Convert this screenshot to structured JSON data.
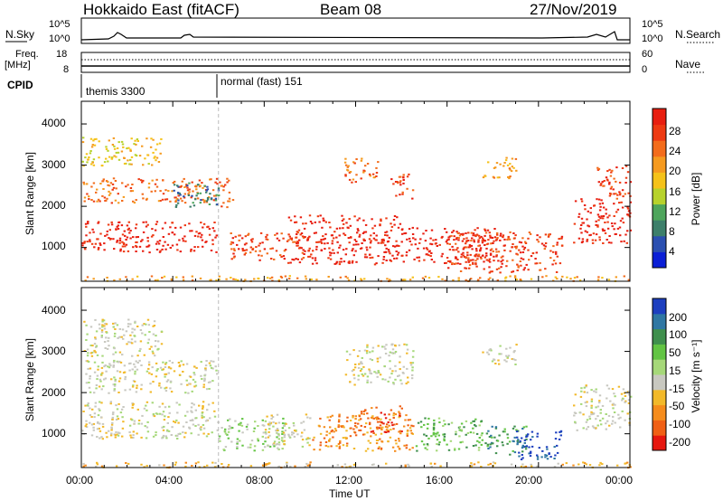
{
  "header": {
    "station": "Hokkaido East (fitACF)",
    "beam": "Beam 08",
    "date": "27/Nov/2019"
  },
  "strips": {
    "nsky_label": "N.Sky",
    "nsearch_label": "N.Search",
    "freq_label": "Freq.",
    "freq_unit": "[MHz]",
    "nave_label": "Nave",
    "cpid_label": "CPID",
    "noise_ticks": [
      "10^5",
      "10^0"
    ],
    "freq_ticks": [
      "18",
      "8"
    ],
    "nave_ticks": [
      "60",
      "0"
    ],
    "cpid_modes": [
      {
        "name": "themis 3300",
        "start_hour": 0
      },
      {
        "name": "normal (fast) 151",
        "start_hour": 6
      }
    ]
  },
  "panels": {
    "yaxis_label": "Slant Range [km]",
    "yticks": [
      "1000",
      "2000",
      "3000",
      "4000"
    ],
    "xticks": [
      "00:00",
      "04:00",
      "08:00",
      "12:00",
      "16:00",
      "20:00",
      "00:00"
    ],
    "xlabel": "Time UT",
    "power_label": "Power [dB]",
    "velocity_label": "Velocity [m s⁻¹]"
  },
  "chart_data": [
    {
      "type": "heatmap",
      "name": "power",
      "x_range_hours": [
        0,
        24
      ],
      "y_range_km": [
        180,
        4550
      ],
      "colorbar_ticks": [
        4,
        8,
        12,
        16,
        20,
        24,
        28
      ],
      "colors": [
        "#0b1fd6",
        "#2b4fb0",
        "#3d7f6a",
        "#4ea55c",
        "#b7d22c",
        "#f5c219",
        "#f59a1f",
        "#f36c1b",
        "#ee3a12",
        "#e81e10"
      ],
      "blobs": [
        {
          "t0": 0.0,
          "t1": 6.0,
          "r0": 900,
          "r1": 1650,
          "c": 9
        },
        {
          "t0": 0.0,
          "t1": 6.0,
          "r0": 2100,
          "r1": 2700,
          "c": 7
        },
        {
          "t0": 0.0,
          "t1": 3.5,
          "r0": 3000,
          "r1": 3700,
          "c": 5
        },
        {
          "t0": 4.0,
          "t1": 6.0,
          "r0": 2000,
          "r1": 2600,
          "c": 2
        },
        {
          "t0": 6.0,
          "t1": 6.6,
          "r0": 2000,
          "r1": 2700,
          "c": 7
        },
        {
          "t0": 6.5,
          "t1": 10.0,
          "r0": 700,
          "r1": 1400,
          "c": 8
        },
        {
          "t0": 9.0,
          "t1": 14.0,
          "r0": 600,
          "r1": 1800,
          "c": 9
        },
        {
          "t0": 14.0,
          "t1": 18.5,
          "r0": 600,
          "r1": 1500,
          "c": 9
        },
        {
          "t0": 16.0,
          "t1": 21.0,
          "r0": 400,
          "r1": 1400,
          "c": 8
        },
        {
          "t0": 11.5,
          "t1": 13.0,
          "r0": 2600,
          "r1": 3200,
          "c": 7
        },
        {
          "t0": 13.5,
          "t1": 14.5,
          "r0": 2200,
          "r1": 2800,
          "c": 8
        },
        {
          "t0": 17.5,
          "t1": 19.0,
          "r0": 2700,
          "r1": 3200,
          "c": 6
        },
        {
          "t0": 21.5,
          "t1": 24.0,
          "r0": 1100,
          "r1": 2200,
          "c": 9
        },
        {
          "t0": 22.5,
          "t1": 24.0,
          "r0": 2200,
          "r1": 3000,
          "c": 8
        },
        {
          "t0": 0.0,
          "t1": 24.0,
          "r0": 200,
          "r1": 330,
          "c": 6
        }
      ]
    },
    {
      "type": "heatmap",
      "name": "velocity",
      "x_range_hours": [
        0,
        24
      ],
      "y_range_km": [
        180,
        4550
      ],
      "colorbar_ticks": [
        200,
        100,
        50,
        15,
        -15,
        -50,
        -100,
        -200
      ],
      "colors": [
        "#1d3fbf",
        "#2f77a3",
        "#3f8f4d",
        "#62c443",
        "#a6d879",
        "#c8c8c0",
        "#f2b92a",
        "#f58c1c",
        "#f06015",
        "#e6170f"
      ],
      "blobs": [
        {
          "t0": 0.0,
          "t1": 6.0,
          "r0": 900,
          "r1": 1800,
          "c": 5
        },
        {
          "t0": 0.0,
          "t1": 6.0,
          "r0": 2000,
          "r1": 2800,
          "c": 5
        },
        {
          "t0": 0.0,
          "t1": 3.5,
          "r0": 2900,
          "r1": 3800,
          "c": 5
        },
        {
          "t0": 6.0,
          "t1": 9.0,
          "r0": 600,
          "r1": 1400,
          "c": 4
        },
        {
          "t0": 8.0,
          "t1": 10.0,
          "r0": 700,
          "r1": 1500,
          "c": 5
        },
        {
          "t0": 10.0,
          "t1": 14.5,
          "r0": 600,
          "r1": 1500,
          "c": 7
        },
        {
          "t0": 12.0,
          "t1": 14.0,
          "r0": 1000,
          "r1": 1700,
          "c": 8
        },
        {
          "t0": 14.5,
          "t1": 17.5,
          "r0": 600,
          "r1": 1400,
          "c": 3
        },
        {
          "t0": 17.5,
          "t1": 19.5,
          "r0": 500,
          "r1": 1200,
          "c": 2
        },
        {
          "t0": 19.0,
          "t1": 21.0,
          "r0": 400,
          "r1": 1100,
          "c": 0
        },
        {
          "t0": 21.5,
          "t1": 24.0,
          "r0": 1100,
          "r1": 2200,
          "c": 5
        },
        {
          "t0": 11.5,
          "t1": 14.5,
          "r0": 2200,
          "r1": 3200,
          "c": 5
        },
        {
          "t0": 17.5,
          "t1": 19.0,
          "r0": 2700,
          "r1": 3200,
          "c": 5
        },
        {
          "t0": 0.0,
          "t1": 24.0,
          "r0": 200,
          "r1": 330,
          "c": 6
        }
      ]
    }
  ]
}
